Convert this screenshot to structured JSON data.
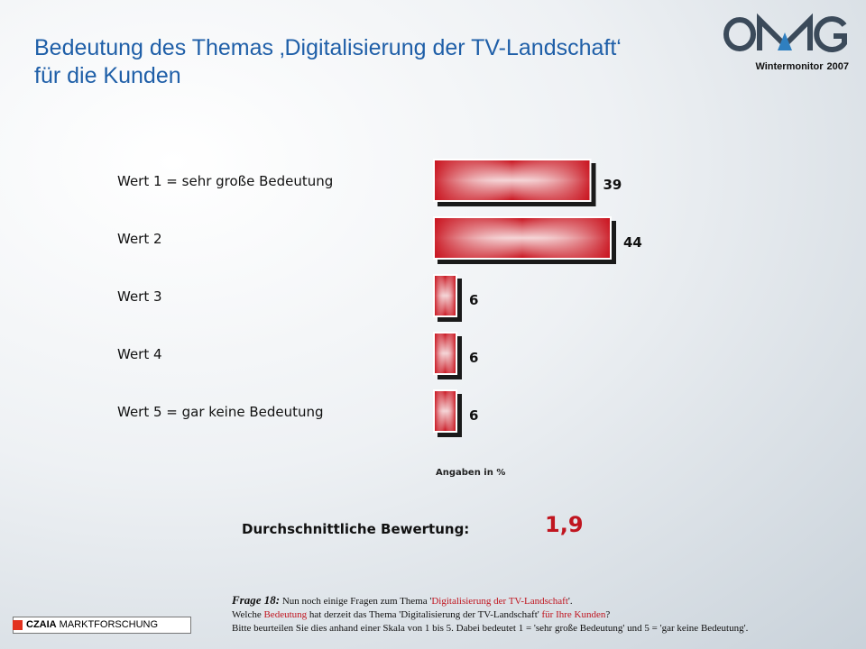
{
  "header": {
    "title_line1": "Bedeutung des Themas ‚Digitalisierung der TV-Landschaft‘",
    "title_line2": "für die Kunden"
  },
  "brand": {
    "logo_text": "OMG",
    "sub_left": "Wintermonitor",
    "sub_right": "2007",
    "logo_color": "#3b4a5a",
    "logo_accent": "#2f7fc0"
  },
  "chart_data": {
    "type": "bar",
    "orientation": "horizontal",
    "categories": [
      "Wert 1 = sehr große Bedeutung",
      "Wert 2",
      "Wert 3",
      "Wert 4",
      "Wert 5 = gar keine Bedeutung"
    ],
    "values": [
      39,
      44,
      6,
      6,
      6
    ],
    "unit_note": "Angaben in %",
    "xlim": [
      0,
      44
    ],
    "grid": false,
    "bar_color": "#d01e2a"
  },
  "summary": {
    "label": "Durchschnittliche Bewertung:",
    "value": "1,9"
  },
  "footnote": {
    "q_label": "Frage 18:",
    "l1_a": "Nun noch einige Fragen zum Thema '",
    "l1_hl": "Digitalisierung  der TV-Landschaft",
    "l1_b": "'.",
    "l2_a": "Welche ",
    "l2_hl1": "Bedeutung",
    "l2_b": " hat derzeit  das Thema 'Digitalisierung  der TV-Landschaft' ",
    "l2_hl2": "für Ihre Kunden",
    "l2_c": "?",
    "l3": "Bitte beurteilen Sie dies anhand einer Skala von 1 bis 5. Dabei bedeutet 1 = 'sehr große Bedeutung' und 5 = 'gar keine Bedeutung'."
  },
  "footer": {
    "company_bold": "CZAIA",
    "company_rest": " MARKTFORSCHUNG"
  }
}
